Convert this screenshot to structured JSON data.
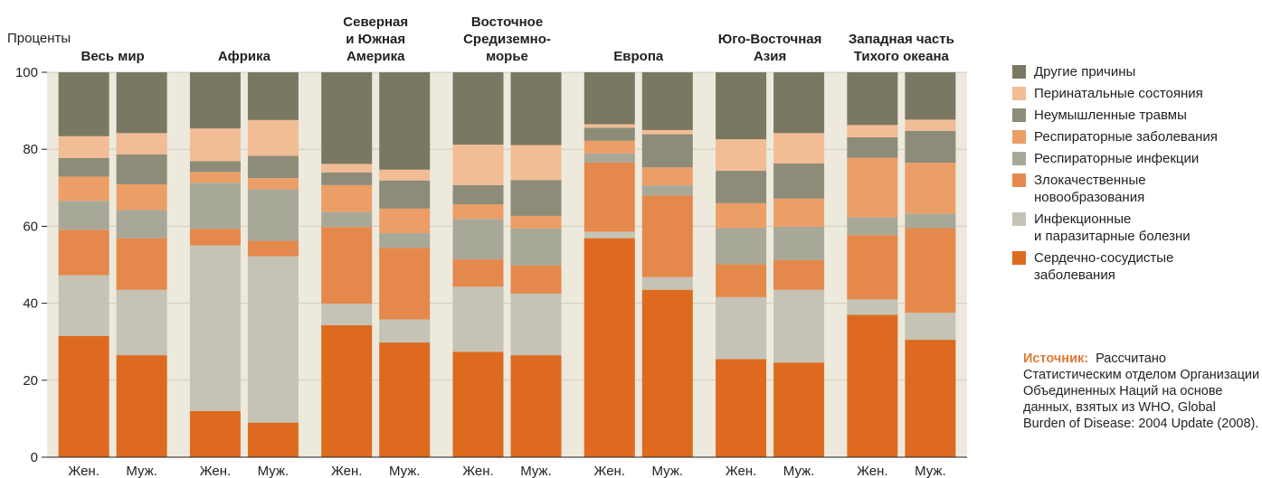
{
  "colors": {
    "background": "#ede9dc",
    "grid": "#d3ccbd"
  },
  "legend": {
    "items": [
      {
        "label": "Другие причины",
        "color": "#7a7862"
      },
      {
        "label": "Перинатальные состояния",
        "color": "#f2bc95"
      },
      {
        "label": "Неумышленные травмы",
        "color": "#8c8c78"
      },
      {
        "label": "Респираторные заболевания",
        "color": "#ec9e67"
      },
      {
        "label": "Респираторные инфекции",
        "color": "#a8a899"
      },
      {
        "label": "Злокачественные\nновообразования",
        "color": "#e5884b"
      },
      {
        "label": "Инфекционные\nи паразитарные болезни",
        "color": "#c4c3b5"
      },
      {
        "label": "Сердечно-сосудистые\nзаболевания",
        "color": "#dd6a1f"
      }
    ]
  },
  "source": {
    "label": "Источник:",
    "text": "Рассчитано Статистическим отделом Организации Объединенных Наций на основе данных, взятых из WHO, Global Burden of Disease: 2004 Update (2008)."
  },
  "chart_data": {
    "type": "bar",
    "stacked": true,
    "ylabel": "Проценты",
    "ylim": [
      0,
      100
    ],
    "yticks": [
      0,
      20,
      40,
      60,
      80,
      100
    ],
    "grid": true,
    "legend_position": "right",
    "regions": [
      {
        "title": "Весь мир",
        "bars": [
          {
            "label": "Жен.",
            "values": [
              31.5,
              15.8,
              11.8,
              7.5,
              6.3,
              4.8,
              5.7,
              16.6
            ]
          },
          {
            "label": "Муж.",
            "values": [
              26.5,
              17.0,
              13.4,
              7.3,
              6.7,
              7.8,
              5.5,
              15.8
            ]
          }
        ]
      },
      {
        "title": "Африка",
        "bars": [
          {
            "label": "Жен.",
            "values": [
              12.0,
              43.0,
              4.3,
              12.0,
              2.8,
              2.8,
              8.5,
              14.6
            ]
          },
          {
            "label": "Муж.",
            "values": [
              9.0,
              43.2,
              4.0,
              13.4,
              2.9,
              5.8,
              9.3,
              12.4
            ]
          }
        ]
      },
      {
        "title": "Северная\nи Южная\nАмерика",
        "bars": [
          {
            "label": "Жен.",
            "values": [
              34.3,
              5.6,
              19.9,
              3.9,
              7.0,
              3.3,
              2.2,
              23.8
            ]
          },
          {
            "label": "Муж.",
            "values": [
              29.8,
              6.0,
              18.6,
              3.8,
              6.4,
              7.3,
              2.8,
              25.3
            ]
          }
        ]
      },
      {
        "title": "Восточное\nСредиземно-\nморье",
        "bars": [
          {
            "label": "Жен.",
            "values": [
              27.4,
              16.9,
              7.1,
              10.5,
              3.8,
              5.0,
              10.5,
              18.8
            ]
          },
          {
            "label": "Муж.",
            "values": [
              26.5,
              16.0,
              7.3,
              9.6,
              3.3,
              9.3,
              9.1,
              18.9
            ]
          }
        ]
      },
      {
        "title": "Европа",
        "bars": [
          {
            "label": "Жен.",
            "values": [
              56.9,
              1.7,
              18.0,
              2.3,
              3.3,
              3.4,
              0.9,
              13.5
            ]
          },
          {
            "label": "Муж.",
            "values": [
              43.5,
              3.3,
              21.2,
              2.6,
              4.7,
              8.6,
              1.1,
              15.0
            ]
          }
        ]
      },
      {
        "title": "Юго-Восточная\nАзия",
        "bars": [
          {
            "label": "Жен.",
            "values": [
              25.5,
              16.1,
              8.5,
              9.4,
              6.5,
              8.4,
              8.2,
              17.4
            ]
          },
          {
            "label": "Муж.",
            "values": [
              24.6,
              18.9,
              7.7,
              8.7,
              7.3,
              9.1,
              7.9,
              15.8
            ]
          }
        ]
      },
      {
        "title": "Западная часть\nТихого океана",
        "bars": [
          {
            "label": "Жен.",
            "values": [
              37.0,
              4.0,
              16.7,
              4.6,
              15.5,
              5.3,
              3.2,
              13.7
            ]
          },
          {
            "label": "Муж.",
            "values": [
              30.5,
              7.0,
              22.0,
              3.8,
              13.2,
              8.3,
              2.9,
              12.3
            ]
          }
        ]
      }
    ]
  }
}
